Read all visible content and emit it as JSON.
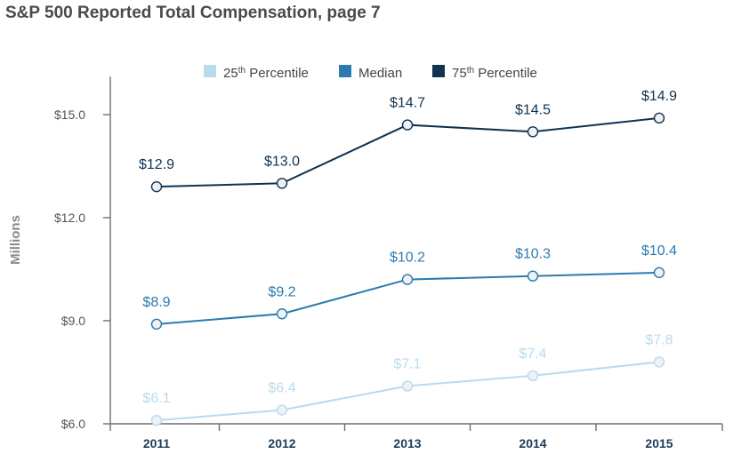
{
  "title": "S&P 500 Reported Total Compensation, page 7",
  "chart_data": {
    "type": "line",
    "title": "S&P 500 Reported Total Compensation, page 7",
    "xlabel": "",
    "ylabel": "Millions",
    "categories": [
      "2011",
      "2012",
      "2013",
      "2014",
      "2015"
    ],
    "yticks": [
      "$6.0",
      "$9.0",
      "$12.0",
      "$15.0"
    ],
    "ylim": [
      6,
      15.9
    ],
    "legend_position": "top-center",
    "series": [
      {
        "name": "25th Percentile",
        "name_parts": [
          "25",
          "th",
          " Percentile"
        ],
        "color": "#b9dbec",
        "values": [
          6.1,
          6.4,
          7.1,
          7.4,
          7.8
        ],
        "labels": [
          "$6.1",
          "$6.4",
          "$7.1",
          "$7.4",
          "$7.8"
        ]
      },
      {
        "name": "Median",
        "name_parts": [
          "Median",
          "",
          ""
        ],
        "color": "#2b7bb0",
        "values": [
          8.9,
          9.2,
          10.2,
          10.3,
          10.4
        ],
        "labels": [
          "$8.9",
          "$9.2",
          "$10.2",
          "$10.3",
          "$10.4"
        ]
      },
      {
        "name": "75th Percentile",
        "name_parts": [
          "75",
          "th",
          " Percentile"
        ],
        "color": "#0f3350",
        "values": [
          12.9,
          13.0,
          14.7,
          14.5,
          14.9
        ],
        "labels": [
          "$12.9",
          "$13.0",
          "$14.7",
          "$14.5",
          "$14.9"
        ]
      }
    ]
  }
}
